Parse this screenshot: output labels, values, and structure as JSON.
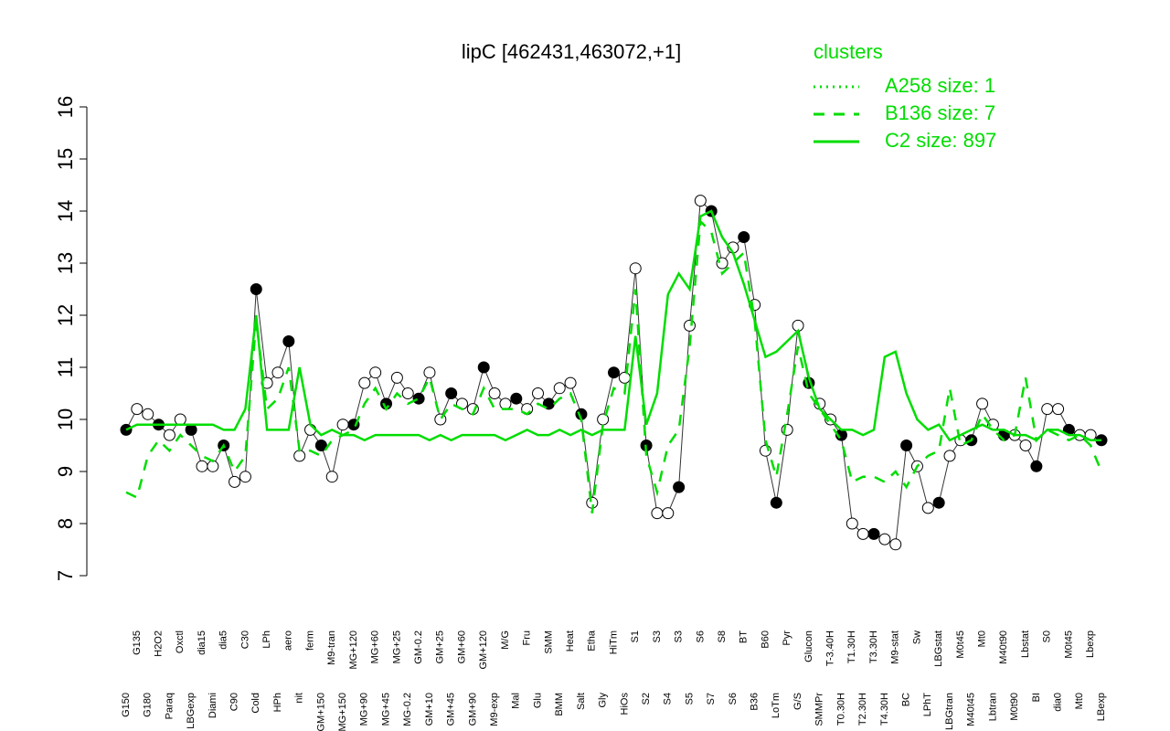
{
  "chart_data": {
    "type": "line",
    "title": "lipC [462431,463072,+1]",
    "categories": [
      "G150",
      "G135",
      "G180",
      "H2O2",
      "Paraq",
      "Oxctl",
      "LBGexp",
      "dia15",
      "Diami",
      "dia5",
      "C90",
      "C30",
      "Cold",
      "LPh",
      "HPh",
      "aero",
      "nit",
      "ferm",
      "GM+150",
      "M9-tran",
      "MG+150",
      "MG+120",
      "MG+90",
      "MG+60",
      "MG+45",
      "MG+25",
      "MG-0.2",
      "GM-0.2",
      "GM+10",
      "GM+25",
      "GM+45",
      "GM+60",
      "GM+90",
      "GM+120",
      "M9-exp",
      "M/G",
      "Mal",
      "Fru",
      "Glu",
      "SMM",
      "BMM",
      "Heat",
      "Salt",
      "Etha",
      "Gly",
      "HiTm",
      "HiOs",
      "S1",
      "S2",
      "S3",
      "S4",
      "S3",
      "S5",
      "S6",
      "S7",
      "S8",
      "S6",
      "BT",
      "B36",
      "B60",
      "LoTm",
      "Pyr",
      "G/S",
      "Glucon",
      "SMMPr",
      "T-3.40H",
      "T0.30H",
      "T1.30H",
      "T2.30H",
      "T3.30H",
      "T4.30H",
      "M9-stat",
      "BC",
      "Sw",
      "LPhT",
      "LBGstat",
      "LBGtran",
      "M0t45",
      "M40t45",
      "Mt0",
      "Lbtran",
      "M40t90",
      "M0t90",
      "Lbstat",
      "BI",
      "S0",
      "dia0",
      "M0t45",
      "Mt0",
      "Lbexp",
      "LBexp"
    ],
    "series": [
      {
        "name": "A258 size: 1",
        "color": "#00dd00",
        "dash": "dotted",
        "markers": true,
        "values": [
          9.8,
          10.2,
          10.1,
          9.9,
          9.7,
          10.0,
          9.8,
          9.1,
          9.1,
          9.5,
          8.8,
          8.9,
          12.5,
          10.7,
          10.9,
          11.5,
          9.3,
          9.8,
          9.5,
          8.9,
          9.9,
          9.9,
          10.7,
          10.9,
          10.3,
          10.8,
          10.5,
          10.4,
          10.9,
          10.0,
          10.5,
          10.3,
          10.2,
          11.0,
          10.5,
          10.3,
          10.4,
          10.2,
          10.5,
          10.3,
          10.6,
          10.7,
          10.1,
          8.4,
          10.0,
          10.9,
          10.8,
          12.9,
          9.5,
          8.2,
          8.2,
          8.7,
          11.8,
          14.2,
          14.0,
          13.0,
          13.3,
          13.5,
          12.2,
          9.4,
          8.4,
          9.8,
          11.8,
          10.7,
          10.3,
          10.0,
          9.7,
          8.0,
          7.8,
          7.8,
          7.7,
          7.6,
          9.5,
          9.1,
          8.3,
          8.4,
          9.3,
          9.6,
          9.6,
          10.3,
          9.9,
          9.7,
          9.7,
          9.5,
          9.1,
          10.2,
          10.2,
          9.8,
          9.7,
          9.7,
          9.6
        ]
      },
      {
        "name": "B136 size: 7",
        "color": "#00dd00",
        "dash": "dashed",
        "markers": false,
        "values": [
          8.6,
          8.5,
          9.3,
          9.6,
          9.4,
          9.7,
          9.5,
          9.3,
          9.2,
          9.5,
          9.0,
          9.3,
          11.9,
          10.2,
          10.4,
          11.0,
          9.4,
          9.4,
          9.3,
          9.6,
          9.7,
          9.8,
          10.3,
          10.6,
          10.2,
          10.5,
          10.3,
          10.4,
          10.8,
          10.0,
          10.3,
          10.2,
          10.1,
          10.6,
          10.2,
          10.2,
          10.2,
          10.1,
          10.3,
          10.2,
          10.4,
          10.5,
          10.0,
          8.2,
          9.9,
          10.6,
          10.5,
          12.5,
          9.3,
          8.6,
          9.5,
          9.8,
          11.4,
          13.8,
          13.6,
          12.8,
          13.0,
          13.2,
          11.9,
          9.6,
          8.9,
          10.1,
          11.4,
          10.5,
          10.2,
          9.9,
          9.6,
          8.8,
          8.9,
          8.9,
          8.8,
          9.0,
          8.7,
          9.1,
          9.3,
          9.4,
          10.6,
          9.5,
          9.6,
          10.1,
          9.8,
          9.6,
          9.7,
          10.8,
          9.6,
          9.8,
          9.7,
          9.6,
          9.7,
          9.5,
          9.0
        ]
      },
      {
        "name": "C2 size: 897",
        "color": "#00dd00",
        "dash": "solid",
        "markers": false,
        "values": [
          9.8,
          9.9,
          9.9,
          9.9,
          9.9,
          9.9,
          9.9,
          9.9,
          9.9,
          9.8,
          9.8,
          10.2,
          12.0,
          9.8,
          9.8,
          9.8,
          11.0,
          9.9,
          9.7,
          9.8,
          9.7,
          9.7,
          9.6,
          9.7,
          9.7,
          9.7,
          9.7,
          9.7,
          9.6,
          9.7,
          9.6,
          9.7,
          9.7,
          9.7,
          9.7,
          9.6,
          9.7,
          9.8,
          9.7,
          9.7,
          9.8,
          9.7,
          9.8,
          9.7,
          9.8,
          9.8,
          9.8,
          11.6,
          9.9,
          10.5,
          12.4,
          12.8,
          12.5,
          13.9,
          14.0,
          13.5,
          13.2,
          12.6,
          11.9,
          11.2,
          11.3,
          11.5,
          11.7,
          10.8,
          10.2,
          10.0,
          9.8,
          9.8,
          9.7,
          9.8,
          11.2,
          11.3,
          10.5,
          10.0,
          9.8,
          9.9,
          9.6,
          9.7,
          9.8,
          9.9,
          9.8,
          9.8,
          9.7,
          9.7,
          9.6,
          9.8,
          9.8,
          9.7,
          9.7,
          9.6,
          9.6
        ]
      }
    ],
    "ylim": [
      7,
      16
    ],
    "yticks": [
      7,
      8,
      9,
      10,
      11,
      12,
      13,
      14,
      15,
      16
    ],
    "legend": {
      "title": "clusters",
      "position": "top-right"
    }
  }
}
